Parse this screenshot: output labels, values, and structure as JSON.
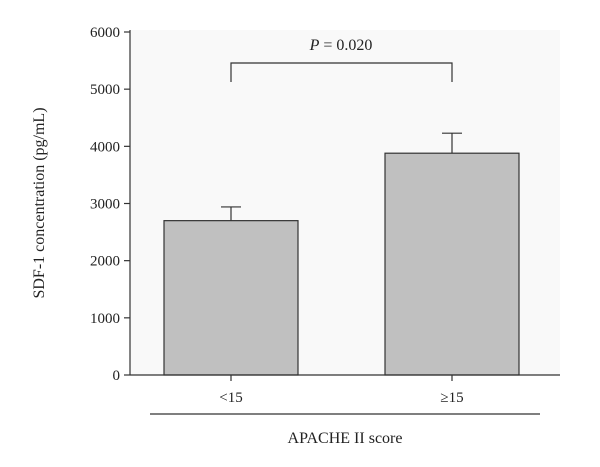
{
  "chart_data": {
    "type": "bar",
    "categories": [
      "<15",
      "≥15"
    ],
    "values": [
      2700,
      3880
    ],
    "error_upper": [
      2940,
      4230
    ],
    "ylabel": "SDF-1 concentration (pg/mL)",
    "xlabel": "APACHE II score",
    "ylim": [
      0,
      6000
    ],
    "yticks": [
      0,
      1000,
      2000,
      3000,
      4000,
      5000,
      6000
    ],
    "grid": false,
    "bar_color": "#c0c0c0",
    "annotation": {
      "p_symbol": "P",
      "p_text": " = 0.020"
    }
  }
}
